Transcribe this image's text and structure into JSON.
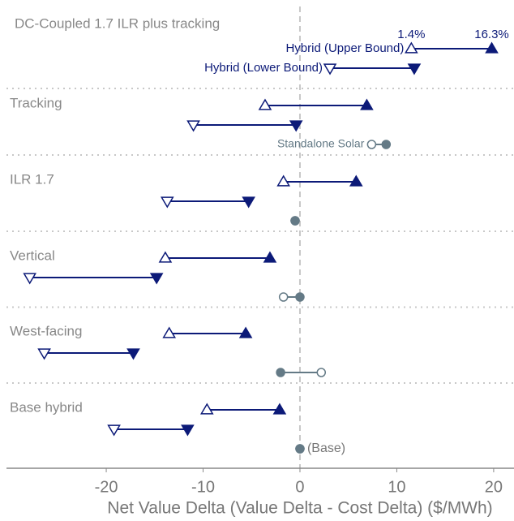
{
  "chart_data": {
    "type": "dumbbell",
    "xlabel": "Net Value Delta (Value Delta - Cost Delta) ($/MWh)",
    "xlim": [
      -30.3,
      22.1
    ],
    "xticks": [
      -20,
      -10,
      0,
      10,
      20
    ],
    "categories": [
      "DC-Coupled 1.7 ILR plus tracking",
      "Tracking",
      "ILR 1.7",
      "Vertical",
      "West-facing",
      "Base hybrid"
    ],
    "series": [
      {
        "name": "Hybrid (Upper Bound)",
        "color": "#0c1a78",
        "marker": "triangle-up",
        "start": [
          11.5,
          -3.6,
          -1.7,
          -13.9,
          -13.5,
          -9.6
        ],
        "end": [
          19.8,
          6.9,
          5.8,
          -3.1,
          -5.6,
          -2.1
        ]
      },
      {
        "name": "Hybrid (Lower Bound)",
        "color": "#0c1a78",
        "marker": "triangle-down",
        "start": [
          3.1,
          -11.0,
          -13.7,
          -27.9,
          -26.4,
          -19.2
        ],
        "end": [
          11.8,
          -0.4,
          -5.3,
          -14.8,
          -17.2,
          -11.6
        ]
      },
      {
        "name": "Standalone Solar",
        "color": "#647a86",
        "marker": "circle",
        "start": [
          null,
          7.4,
          -0.5,
          -1.7,
          2.2,
          0
        ],
        "end": [
          null,
          8.9,
          -0.5,
          0.0,
          -2.0,
          0
        ]
      }
    ],
    "point_labels": [
      {
        "text": "1.4%",
        "series": 0,
        "category": 0,
        "at": "start"
      },
      {
        "text": "16.3%",
        "series": 0,
        "category": 0,
        "at": "end"
      },
      {
        "text": "(Base)",
        "series": 2,
        "category": 5,
        "at": "end"
      }
    ],
    "zero_line": true
  }
}
